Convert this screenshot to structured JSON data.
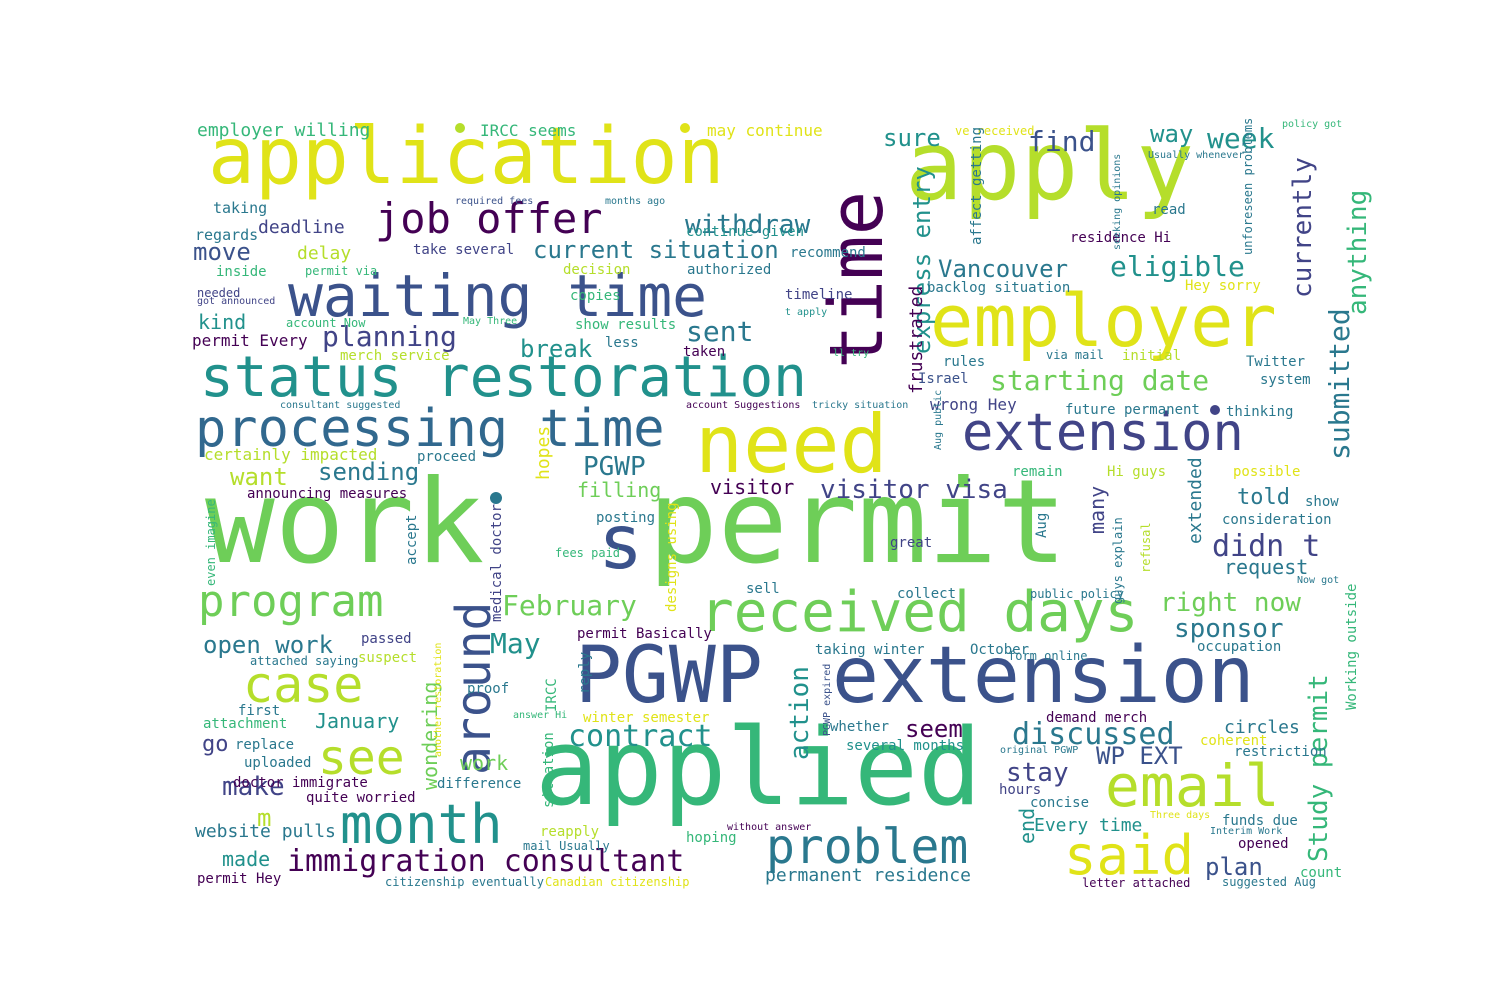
{
  "palette": {
    "purple": "#440154",
    "indigo": "#3b528b",
    "blue": "#31688e",
    "teal": "#21918c",
    "sea": "#35b779",
    "green": "#6ece58",
    "lime": "#b5de2b",
    "yellow": "#e0e318",
    "navy": "#414487",
    "dteal": "#2a788e"
  },
  "words": [
    {
      "text": "work",
      "color": "green"
    },
    {
      "text": "permit",
      "color": "green"
    },
    {
      "text": "s",
      "color": "indigo"
    },
    {
      "text": "application",
      "color": "yellow"
    },
    {
      "text": "apply",
      "color": "lime"
    },
    {
      "text": "time",
      "color": "purple"
    },
    {
      "text": "employer",
      "color": "yellow"
    },
    {
      "text": "need",
      "color": "yellow"
    },
    {
      "text": "applied",
      "color": "sea"
    },
    {
      "text": "PGWP",
      "color": "indigo"
    },
    {
      "text": "extension",
      "color": "indigo"
    },
    {
      "text": "status restoration",
      "color": "teal"
    },
    {
      "text": "waiting time",
      "color": "indigo"
    },
    {
      "text": "processing time",
      "color": "blue"
    },
    {
      "text": "extension",
      "color": "navy"
    },
    {
      "text": "job offer",
      "color": "purple"
    },
    {
      "text": "received days",
      "color": "green"
    },
    {
      "text": "program",
      "color": "green"
    },
    {
      "text": "case",
      "color": "lime"
    },
    {
      "text": "around",
      "color": "indigo"
    },
    {
      "text": "month",
      "color": "teal"
    },
    {
      "text": "see",
      "color": "lime"
    },
    {
      "text": "email",
      "color": "lime"
    },
    {
      "text": "said",
      "color": "yellow"
    },
    {
      "text": "problem",
      "color": "dteal"
    },
    {
      "text": "immigration consultant",
      "color": "purple"
    },
    {
      "text": "contract",
      "color": "teal"
    },
    {
      "text": "withdraw",
      "color": "dteal"
    },
    {
      "text": "current situation",
      "color": "dteal"
    },
    {
      "text": "Vancouver",
      "color": "dteal"
    },
    {
      "text": "eligible",
      "color": "teal"
    },
    {
      "text": "starting date",
      "color": "green"
    },
    {
      "text": "submitted",
      "color": "dteal"
    },
    {
      "text": "anything",
      "color": "sea"
    },
    {
      "text": "currently",
      "color": "navy"
    },
    {
      "text": "week",
      "color": "teal"
    },
    {
      "text": "way",
      "color": "teal"
    },
    {
      "text": "find",
      "color": "indigo"
    },
    {
      "text": "sure",
      "color": "teal"
    },
    {
      "text": "express entry",
      "color": "teal"
    },
    {
      "text": "planning",
      "color": "navy"
    },
    {
      "text": "sent",
      "color": "dteal"
    },
    {
      "text": "break",
      "color": "teal"
    },
    {
      "text": "sending",
      "color": "dteal"
    },
    {
      "text": "PGWP",
      "color": "dteal"
    },
    {
      "text": "visitor visa",
      "color": "navy"
    },
    {
      "text": "visitor",
      "color": "purple"
    },
    {
      "text": "filling",
      "color": "green"
    },
    {
      "text": "February",
      "color": "green"
    },
    {
      "text": "May",
      "color": "teal"
    },
    {
      "text": "right now",
      "color": "green"
    },
    {
      "text": "sponsor",
      "color": "dteal"
    },
    {
      "text": "didn t",
      "color": "navy"
    },
    {
      "text": "told",
      "color": "dteal"
    },
    {
      "text": "request",
      "color": "dteal"
    },
    {
      "text": "Study permit",
      "color": "sea"
    },
    {
      "text": "discussed",
      "color": "dteal"
    },
    {
      "text": "WP EXT",
      "color": "indigo"
    },
    {
      "text": "seem",
      "color": "purple"
    },
    {
      "text": "stay",
      "color": "navy"
    },
    {
      "text": "action",
      "color": "teal"
    },
    {
      "text": "plan",
      "color": "indigo"
    },
    {
      "text": "end",
      "color": "teal"
    },
    {
      "text": "move",
      "color": "indigo"
    },
    {
      "text": "open work",
      "color": "dteal"
    },
    {
      "text": "want",
      "color": "lime"
    },
    {
      "text": "kind",
      "color": "teal"
    },
    {
      "text": "go",
      "color": "navy"
    },
    {
      "text": "make",
      "color": "navy"
    },
    {
      "text": "m",
      "color": "lime"
    },
    {
      "text": "made",
      "color": "teal"
    },
    {
      "text": "January",
      "color": "teal"
    },
    {
      "text": "work",
      "color": "green"
    },
    {
      "text": "wondering",
      "color": "green"
    },
    {
      "text": "hopes",
      "color": "yellow"
    },
    {
      "text": "frustrated",
      "color": "purple"
    },
    {
      "text": "extended",
      "color": "dteal"
    },
    {
      "text": "many",
      "color": "navy"
    },
    {
      "text": "website pulls",
      "color": "dteal"
    },
    {
      "text": "deadline",
      "color": "navy"
    },
    {
      "text": "delay",
      "color": "lime"
    },
    {
      "text": "employer willing",
      "color": "sea"
    },
    {
      "text": "IRCC seems",
      "color": "sea"
    },
    {
      "text": "may continue",
      "color": "yellow"
    },
    {
      "text": "ve received",
      "color": "yellow"
    },
    {
      "text": "policy got",
      "color": "sea"
    },
    {
      "text": "Usually whenever",
      "color": "dteal"
    },
    {
      "text": "taking",
      "color": "dteal"
    },
    {
      "text": "regards",
      "color": "dteal"
    },
    {
      "text": "required fees",
      "color": "indigo"
    },
    {
      "text": "months ago",
      "color": "dteal"
    },
    {
      "text": "continue given",
      "color": "teal"
    },
    {
      "text": "take several",
      "color": "navy"
    },
    {
      "text": "recommend",
      "color": "dteal"
    },
    {
      "text": "decision",
      "color": "lime"
    },
    {
      "text": "authorized",
      "color": "dteal"
    },
    {
      "text": "timeline",
      "color": "navy"
    },
    {
      "text": "t apply",
      "color": "teal"
    },
    {
      "text": "inside",
      "color": "sea"
    },
    {
      "text": "permit via",
      "color": "sea"
    },
    {
      "text": "needed",
      "color": "navy"
    },
    {
      "text": "got announced",
      "color": "navy"
    },
    {
      "text": "copies",
      "color": "sea"
    },
    {
      "text": "show results",
      "color": "sea"
    },
    {
      "text": "less",
      "color": "dteal"
    },
    {
      "text": "taken",
      "color": "purple"
    },
    {
      "text": "account Now",
      "color": "sea"
    },
    {
      "text": "May Three",
      "color": "sea"
    },
    {
      "text": "permit Every",
      "color": "purple"
    },
    {
      "text": "merch service",
      "color": "lime"
    },
    {
      "text": "ll try",
      "color": "sea"
    },
    {
      "text": "rules",
      "color": "dteal"
    },
    {
      "text": "via mail",
      "color": "dteal"
    },
    {
      "text": "initial",
      "color": "lime"
    },
    {
      "text": "Twitter",
      "color": "dteal"
    },
    {
      "text": "system",
      "color": "dteal"
    },
    {
      "text": "Israel",
      "color": "indigo"
    },
    {
      "text": "backlog situation",
      "color": "dteal"
    },
    {
      "text": "Hey sorry",
      "color": "yellow"
    },
    {
      "text": "residence Hi",
      "color": "purple"
    },
    {
      "text": "read",
      "color": "dteal"
    },
    {
      "text": "affect getting",
      "color": "dteal"
    },
    {
      "text": "seeking opinions",
      "color": "dteal"
    },
    {
      "text": "unforeseen problems",
      "color": "dteal"
    },
    {
      "text": "consultant suggested",
      "color": "dteal"
    },
    {
      "text": "account Suggestions",
      "color": "purple"
    },
    {
      "text": "tricky situation",
      "color": "dteal"
    },
    {
      "text": "wrong Hey",
      "color": "navy"
    },
    {
      "text": "future permanent",
      "color": "dteal"
    },
    {
      "text": "thinking",
      "color": "dteal"
    },
    {
      "text": "certainly impacted",
      "color": "lime"
    },
    {
      "text": "proceed",
      "color": "dteal"
    },
    {
      "text": "announcing measures",
      "color": "purple"
    },
    {
      "text": "remain",
      "color": "sea"
    },
    {
      "text": "Hi guys",
      "color": "lime"
    },
    {
      "text": "possible",
      "color": "yellow"
    },
    {
      "text": "show",
      "color": "dteal"
    },
    {
      "text": "consideration",
      "color": "dteal"
    },
    {
      "text": "even imagine",
      "color": "sea"
    },
    {
      "text": "posting",
      "color": "dteal"
    },
    {
      "text": "accept",
      "color": "dteal"
    },
    {
      "text": "medical doctor",
      "color": "navy"
    },
    {
      "text": "designs using",
      "color": "yellow"
    },
    {
      "text": "fees paid",
      "color": "sea"
    },
    {
      "text": "sell",
      "color": "dteal"
    },
    {
      "text": "great",
      "color": "navy"
    },
    {
      "text": "collect",
      "color": "dteal"
    },
    {
      "text": "public policy",
      "color": "dteal"
    },
    {
      "text": "guys explain",
      "color": "dteal"
    },
    {
      "text": "refusal",
      "color": "lime"
    },
    {
      "text": "Aug",
      "color": "dteal"
    },
    {
      "text": "Aug public",
      "color": "dteal"
    },
    {
      "text": "Now got",
      "color": "dteal"
    },
    {
      "text": "occupation",
      "color": "dteal"
    },
    {
      "text": "Working outside",
      "color": "sea"
    },
    {
      "text": "permit Basically",
      "color": "purple"
    },
    {
      "text": "passed",
      "color": "navy"
    },
    {
      "text": "suspect",
      "color": "lime"
    },
    {
      "text": "attached saying",
      "color": "dteal"
    },
    {
      "text": "taking winter",
      "color": "dteal"
    },
    {
      "text": "October",
      "color": "dteal"
    },
    {
      "text": "form online",
      "color": "dteal"
    },
    {
      "text": "proof",
      "color": "dteal"
    },
    {
      "text": "reply",
      "color": "dteal"
    },
    {
      "text": "IRCC",
      "color": "sea"
    },
    {
      "text": "first",
      "color": "dteal"
    },
    {
      "text": "attachment",
      "color": "sea"
    },
    {
      "text": "answer Hi",
      "color": "sea"
    },
    {
      "text": "winter semester",
      "color": "yellow"
    },
    {
      "text": "PGWP expired",
      "color": "indigo"
    },
    {
      "text": "whether",
      "color": "dteal"
    },
    {
      "text": "several months",
      "color": "teal"
    },
    {
      "text": "demand merch",
      "color": "purple"
    },
    {
      "text": "circles",
      "color": "dteal"
    },
    {
      "text": "restriction",
      "color": "dteal"
    },
    {
      "text": "coherent",
      "color": "yellow"
    },
    {
      "text": "replace",
      "color": "dteal"
    },
    {
      "text": "uploaded",
      "color": "dteal"
    },
    {
      "text": "doctor immigrate",
      "color": "purple"
    },
    {
      "text": "another restoration",
      "color": "yellow"
    },
    {
      "text": "situation",
      "color": "sea"
    },
    {
      "text": "difference",
      "color": "dteal"
    },
    {
      "text": "original PGWP",
      "color": "dteal"
    },
    {
      "text": "hours",
      "color": "navy"
    },
    {
      "text": "concise",
      "color": "dteal"
    },
    {
      "text": "quite worried",
      "color": "purple"
    },
    {
      "text": "Every time",
      "color": "teal"
    },
    {
      "text": "Three days",
      "color": "yellow"
    },
    {
      "text": "funds due",
      "color": "dteal"
    },
    {
      "text": "Interim Work",
      "color": "dteal"
    },
    {
      "text": "reapply",
      "color": "lime"
    },
    {
      "text": "hoping",
      "color": "sea"
    },
    {
      "text": "without answer",
      "color": "purple"
    },
    {
      "text": "mail Usually",
      "color": "dteal"
    },
    {
      "text": "opened",
      "color": "purple"
    },
    {
      "text": "count",
      "color": "sea"
    },
    {
      "text": "permanent residence",
      "color": "dteal"
    },
    {
      "text": "permit Hey",
      "color": "purple"
    },
    {
      "text": "citizenship eventually",
      "color": "dteal"
    },
    {
      "text": "Canadian citizenship",
      "color": "yellow"
    },
    {
      "text": "letter attached",
      "color": "purple"
    },
    {
      "text": "suggested Aug",
      "color": "dteal"
    }
  ]
}
